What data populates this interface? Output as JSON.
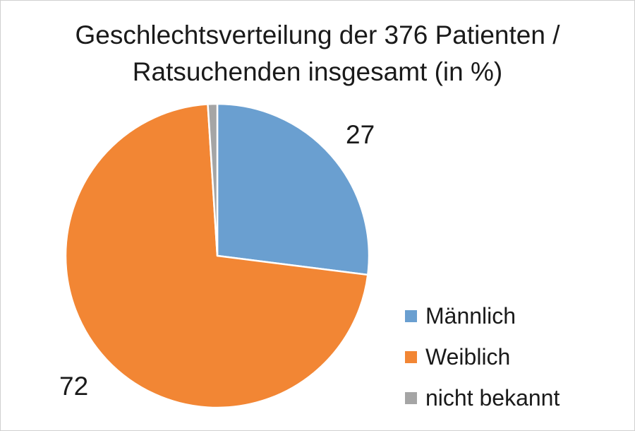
{
  "chart_data": {
    "type": "pie",
    "title_lines": [
      "Geschlechtsverteilung der 376 Patienten  /",
      "Ratsuchenden insgesamt (in %)"
    ],
    "categories": [
      "Männlich",
      "Weiblich",
      "nicht bekannt"
    ],
    "values": [
      27,
      72,
      1
    ],
    "data_labels": [
      "27",
      "72",
      ""
    ],
    "colors": [
      "#6A9FD0",
      "#F28634",
      "#A5A5A5"
    ],
    "legend_placement": "right-bottom"
  }
}
